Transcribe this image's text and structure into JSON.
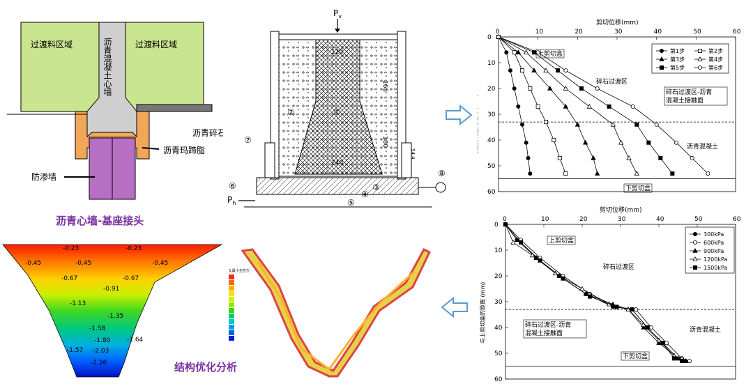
{
  "joint": {
    "left_region": "过渡料区域",
    "right_region": "过渡料区域",
    "wall_label": "沥青混凝土心墙",
    "gravel_label": "沥青碎石",
    "mastic_label": "沥青玛蹄脂",
    "cutoff_label": "防渗墙",
    "caption": "沥青心墙-基座接头",
    "colors": {
      "region": "#c9e58f",
      "wall": "#cfcfcf",
      "mastic": "#f2a65a",
      "cutoff": "#b76fc4",
      "caption": "#7a2fa0"
    }
  },
  "apparatus": {
    "pv": "P",
    "pv_sub": "v",
    "ph": "P",
    "ph_sub": "h",
    "dim_120": "120",
    "dim_165": "165",
    "dim_180": "180",
    "dim_240": "240",
    "dim_544": "54.4",
    "markers": [
      "①",
      "②",
      "③",
      "④",
      "⑤",
      "⑥",
      "⑦",
      "⑧"
    ]
  },
  "fea": {
    "caption": "结构优化分析",
    "contour_labels": [
      "-0.23",
      "-0.23",
      "-0.45",
      "-0.45",
      "-0.45",
      "-0.67",
      "-0.67",
      "-0.91",
      "-1.13",
      "-1.35",
      "-1.58",
      "-1.80",
      "-2.03",
      "-1.57",
      "-1.64",
      "-2.26"
    ],
    "legend_title": "S,最小主应力",
    "legend_colors": [
      "#ff2a00",
      "#ff6a00",
      "#ffae00",
      "#ffe000",
      "#d8f000",
      "#8ee800",
      "#3ad800",
      "#00c870",
      "#00c8c8",
      "#00a0e8",
      "#0060ff",
      "#0020d0"
    ]
  },
  "chart_data": [
    {
      "type": "line",
      "title": "剪切位移(mm)",
      "xlim": [
        0,
        60
      ],
      "ylim": [
        0,
        60
      ],
      "x_ticks": [
        0,
        10,
        20,
        30,
        40,
        50,
        60
      ],
      "y_ticks": [
        0,
        10,
        20,
        30,
        40,
        50,
        60
      ],
      "ylabel": "与上剪切盒的距离 (mm)",
      "annotations": {
        "upper_box": "上剪切盒",
        "lower_box": "下剪切盒",
        "region_top": "碎石过渡区",
        "interface": "碎石过渡区-沥青混凝土接触面",
        "region_bottom": "沥青混凝土"
      },
      "interface_y": 33,
      "lower_box_y": 55,
      "series": [
        {
          "name": "第1步",
          "marker": "circle-filled",
          "points": [
            [
              0,
              0
            ],
            [
              2,
              6
            ],
            [
              3,
              13
            ],
            [
              4,
              20
            ],
            [
              5,
              27
            ],
            [
              6,
              34
            ],
            [
              7,
              41
            ],
            [
              7.5,
              47
            ],
            [
              8,
              53
            ]
          ]
        },
        {
          "name": "第2步",
          "marker": "square-open",
          "points": [
            [
              0,
              0
            ],
            [
              4,
              6
            ],
            [
              6,
              13
            ],
            [
              8,
              20
            ],
            [
              10,
              27
            ],
            [
              12,
              33
            ],
            [
              14,
              40
            ],
            [
              15.5,
              47
            ],
            [
              17,
              53
            ]
          ]
        },
        {
          "name": "第3步",
          "marker": "triangle-filled",
          "points": [
            [
              0,
              0
            ],
            [
              5,
              6
            ],
            [
              9,
              13
            ],
            [
              13,
              20
            ],
            [
              17,
              27
            ],
            [
              20,
              34
            ],
            [
              22,
              41
            ],
            [
              24,
              47
            ],
            [
              25,
              53
            ]
          ]
        },
        {
          "name": "第4步",
          "marker": "triangle-open",
          "points": [
            [
              0,
              0
            ],
            [
              7,
              6
            ],
            [
              12,
              13
            ],
            [
              17,
              20
            ],
            [
              23,
              27
            ],
            [
              29,
              34
            ],
            [
              31,
              41
            ],
            [
              33,
              47
            ],
            [
              35,
              53
            ]
          ]
        },
        {
          "name": "第5步",
          "marker": "square-filled",
          "points": [
            [
              0,
              0
            ],
            [
              9,
              6
            ],
            [
              15,
              13
            ],
            [
              21,
              20
            ],
            [
              28,
              27
            ],
            [
              35,
              34
            ],
            [
              38,
              41
            ],
            [
              41,
              47
            ],
            [
              44,
              53
            ]
          ]
        },
        {
          "name": "第6步",
          "marker": "circle-open",
          "points": [
            [
              0,
              0
            ],
            [
              10,
              6
            ],
            [
              17,
              13
            ],
            [
              25,
              20
            ],
            [
              34,
              27
            ],
            [
              40,
              34
            ],
            [
              45,
              41
            ],
            [
              49,
              47
            ],
            [
              53,
              53
            ]
          ]
        }
      ]
    },
    {
      "type": "line",
      "title": "剪切位移(mm)",
      "xlim": [
        0,
        60
      ],
      "ylim": [
        0,
        60
      ],
      "x_ticks": [
        0,
        10,
        20,
        30,
        40,
        50,
        60
      ],
      "y_ticks": [
        0,
        10,
        20,
        30,
        40,
        50,
        60
      ],
      "ylabel": "与上剪切盒的距离 (mm)",
      "annotations": {
        "upper_box": "上剪切盒",
        "lower_box": "下剪切盒",
        "region_top": "碎石过渡区",
        "interface": "碎石过渡区-沥青混凝土接触面",
        "region_bottom": "沥青混凝土"
      },
      "interface_y": 33,
      "lower_box_y": 55,
      "series": [
        {
          "name": "300kPa",
          "marker": "circle-filled",
          "points": [
            [
              0,
              0
            ],
            [
              3,
              6
            ],
            [
              8,
              13
            ],
            [
              14,
              20
            ],
            [
              21,
              27
            ],
            [
              28,
              32
            ],
            [
              33,
              33
            ],
            [
              37,
              40
            ],
            [
              41,
              46
            ],
            [
              45,
              52
            ],
            [
              47,
              53
            ]
          ]
        },
        {
          "name": "600kPa",
          "marker": "circle-open",
          "points": [
            [
              0,
              0
            ],
            [
              4,
              6
            ],
            [
              9,
              13
            ],
            [
              15,
              20
            ],
            [
              22,
              27
            ],
            [
              29,
              32
            ],
            [
              34,
              33
            ],
            [
              38,
              40
            ],
            [
              42,
              46
            ],
            [
              46,
              52
            ],
            [
              48,
              53
            ]
          ]
        },
        {
          "name": "900kPa",
          "marker": "triangle-filled",
          "points": [
            [
              0,
              0
            ],
            [
              3,
              6
            ],
            [
              8,
              13
            ],
            [
              14,
              20
            ],
            [
              21,
              27
            ],
            [
              28,
              31
            ],
            [
              32,
              33
            ],
            [
              36,
              40
            ],
            [
              40,
              46
            ],
            [
              45,
              52
            ],
            [
              47,
              53
            ]
          ]
        },
        {
          "name": "1200kPa",
          "marker": "triangle-open",
          "points": [
            [
              0,
              0
            ],
            [
              2,
              7
            ],
            [
              7,
              12
            ],
            [
              13,
              19
            ],
            [
              20,
              25
            ],
            [
              27,
              31
            ],
            [
              32,
              33
            ],
            [
              36,
              39
            ],
            [
              40,
              45
            ],
            [
              44,
              51
            ],
            [
              46,
              52
            ]
          ]
        },
        {
          "name": "1500kPa",
          "marker": "square-filled",
          "points": [
            [
              0,
              0
            ],
            [
              4,
              7
            ],
            [
              9,
              14
            ],
            [
              15,
              21
            ],
            [
              22,
              28
            ],
            [
              29,
              32
            ],
            [
              33,
              33
            ],
            [
              37,
              40
            ],
            [
              41,
              46
            ],
            [
              44,
              52
            ],
            [
              46,
              53
            ]
          ]
        }
      ]
    }
  ]
}
